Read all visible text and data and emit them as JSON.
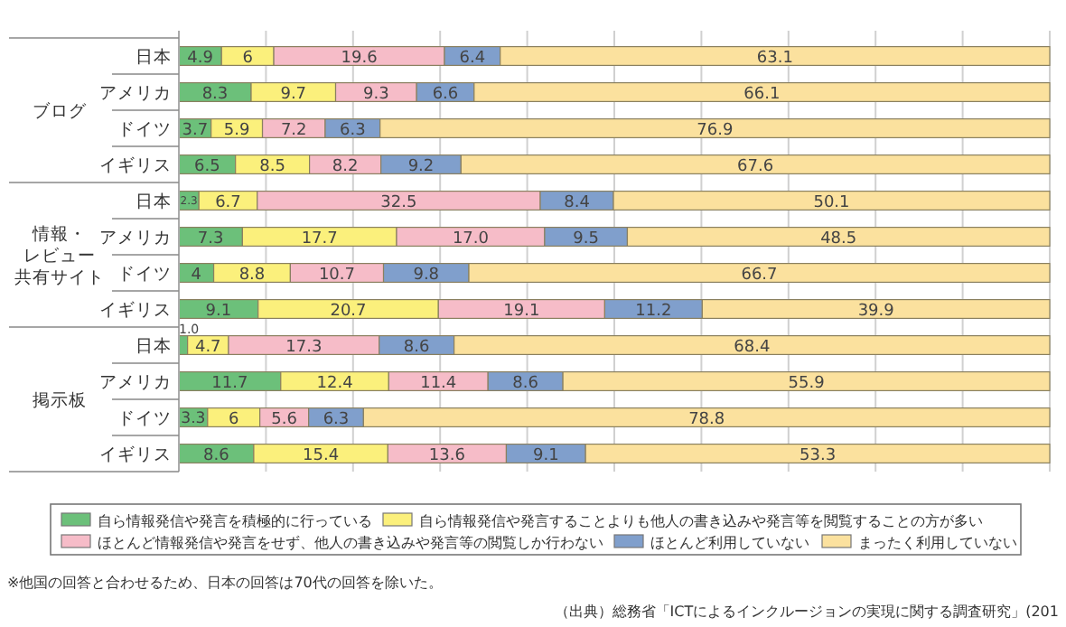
{
  "chart_data": {
    "type": "bar",
    "orientation": "horizontal",
    "stacked": true,
    "categories": [
      "日本",
      "アメリカ",
      "ドイツ",
      "イギリス",
      "日本",
      "アメリカ",
      "ドイツ",
      "イギリス",
      "日本",
      "アメリカ",
      "ドイツ",
      "イギリス"
    ],
    "series": [
      {
        "name": "自ら情報発信や発言を積極的に行っている",
        "color": "#6cc07a",
        "values": [
          4.9,
          8.3,
          3.7,
          6.5,
          2.3,
          7.3,
          4,
          9.1,
          1.0,
          11.7,
          3.3,
          8.6
        ],
        "value_labels": [
          "4.9",
          "8.3",
          "3.7",
          "6.5",
          "2.3",
          "7.3",
          "4",
          "9.1",
          "1.0",
          "11.7",
          "3.3",
          "8.6"
        ]
      },
      {
        "name": "自ら情報発信や発言することよりも他人の書き込みや発言等を閲覧することの方が多い",
        "color": "#fbf07c",
        "values": [
          6,
          9.7,
          5.9,
          8.5,
          6.7,
          17.7,
          8.8,
          20.7,
          4.7,
          12.4,
          6,
          15.4
        ],
        "value_labels": [
          "6",
          "9.7",
          "5.9",
          "8.5",
          "6.7",
          "17.7",
          "8.8",
          "20.7",
          "4.7",
          "12.4",
          "6",
          "15.4"
        ]
      },
      {
        "name": "ほとんど情報発信や発言をせず、他人の書き込みや発言等の閲覧しか行わない",
        "color": "#f6bcc8",
        "values": [
          19.6,
          9.3,
          7.2,
          8.2,
          32.5,
          17.0,
          10.7,
          19.1,
          17.3,
          11.4,
          5.6,
          13.6
        ],
        "value_labels": [
          "19.6",
          "9.3",
          "7.2",
          "8.2",
          "32.5",
          "17.0",
          "10.7",
          "19.1",
          "17.3",
          "11.4",
          "5.6",
          "13.6"
        ]
      },
      {
        "name": "ほとんど利用していない",
        "color": "#809fcc",
        "values": [
          6.4,
          6.6,
          6.3,
          9.2,
          8.4,
          9.5,
          9.8,
          11.2,
          8.6,
          8.6,
          6.3,
          9.1
        ],
        "value_labels": [
          "6.4",
          "6.6",
          "6.3",
          "9.2",
          "8.4",
          "9.5",
          "9.8",
          "11.2",
          "8.6",
          "8.6",
          "6.3",
          "9.1"
        ]
      },
      {
        "name": "まったく利用していない",
        "color": "#fbe19e",
        "values": [
          63.1,
          66.1,
          76.9,
          67.6,
          50.1,
          48.5,
          66.7,
          39.9,
          68.4,
          55.9,
          78.8,
          53.3
        ],
        "value_labels": [
          "63.1",
          "66.1",
          "76.9",
          "67.6",
          "50.1",
          "48.5",
          "66.7",
          "39.9",
          "68.4",
          "55.9",
          "78.8",
          "53.3"
        ]
      }
    ],
    "xlim": [
      0,
      100
    ],
    "xticks": [
      {
        "value": 0,
        "label": null
      },
      {
        "value": 10,
        "label": null
      },
      {
        "value": 20,
        "label": null
      },
      {
        "value": 30,
        "label": null
      },
      {
        "value": 40,
        "label": null
      },
      {
        "value": 50,
        "label": null
      },
      {
        "value": 60,
        "label": null
      },
      {
        "value": 70,
        "label": null
      },
      {
        "value": 80,
        "label": null
      },
      {
        "value": 90,
        "label": null
      },
      {
        "value": 100,
        "label": null
      }
    ],
    "tick_labels": "y",
    "grid": "x",
    "legend": "bottom",
    "annotations": [
      "ブログ",
      "情報・レビュー共有サイト",
      "掲示板",
      "※他国の回答と合わせるため、日本の回答は70代の回答を除いた。",
      "（出典）総務省「ICTによるインクルージョンの実現に関する調査研究」(201"
    ]
  }
}
